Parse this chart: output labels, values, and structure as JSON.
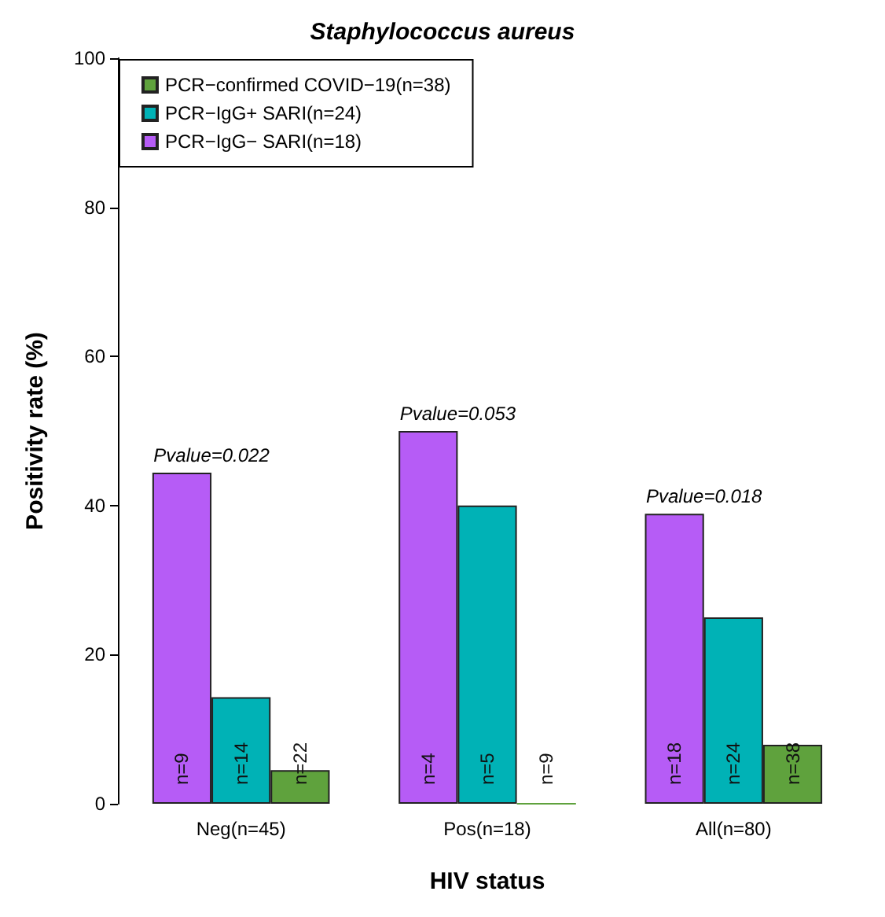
{
  "chart_data": {
    "type": "bar",
    "title": "Staphylococcus aureus",
    "xlabel": "HIV status",
    "ylabel": "Positivity rate (%)",
    "categories": [
      "Neg(n=45)",
      "Pos(n=18)",
      "All(n=80)"
    ],
    "series": [
      {
        "name": "PCR−IgG− SARI(n=18)",
        "color": "#b65cf6",
        "values": [
          44.4,
          50,
          38.9
        ]
      },
      {
        "name": "PCR−IgG+ SARI(n=24)",
        "color": "#00b2b6",
        "values": [
          14.3,
          40,
          25
        ]
      },
      {
        "name": "PCR−confirmed COVID−19(n=38)",
        "color": "#5fa23d",
        "values": [
          4.5,
          0,
          7.9
        ]
      }
    ],
    "annotations": [
      "Pvalue=0.022",
      "Pvalue=0.053",
      "Pvalue=0.018",
      "n=9",
      "n=4",
      "n=18",
      "n=14",
      "n=5",
      "n=24",
      "n=22",
      "n=9",
      "n=38"
    ],
    "ylim": [
      0,
      100
    ],
    "yticks": [
      0,
      20,
      40,
      60,
      80,
      100
    ],
    "grid": false,
    "legend": "top left"
  }
}
